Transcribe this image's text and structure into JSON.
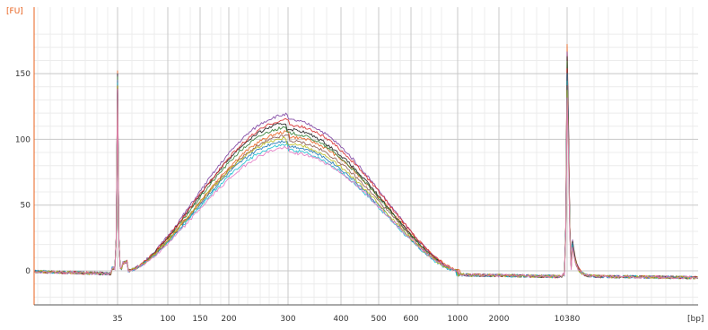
{
  "chart_data": {
    "type": "line",
    "title": "",
    "xlabel": "",
    "ylabel": "",
    "x_unit": "[bp]",
    "y_unit": "[FU]",
    "x_tick_labels": [
      "35",
      "100",
      "150",
      "200",
      "300",
      "400",
      "500",
      "600",
      "1000",
      "2000",
      "10380"
    ],
    "y_tick_labels": [
      "0",
      "50",
      "100",
      "150"
    ],
    "ylim": [
      -25,
      190
    ],
    "grid": true,
    "legend": "none",
    "markers": [
      {
        "label": "35",
        "peak": 150
      },
      {
        "label": "10380",
        "peak": 175
      }
    ],
    "smear": {
      "apex_label": "300",
      "peak_range": [
        88,
        113
      ],
      "start_label": "35",
      "end_label": "1000"
    },
    "series": [
      {
        "color": "#e8601c",
        "peak": 100,
        "shift": 0.05,
        "width": 1.05
      },
      {
        "color": "#7b3fa0",
        "peak": 113,
        "shift": 0.0,
        "width": 1.0
      },
      {
        "color": "#1a1a1a",
        "peak": 106,
        "shift": -0.05,
        "width": 1.0
      },
      {
        "color": "#2f7d32",
        "peak": 103,
        "shift": -0.03,
        "width": 1.0
      },
      {
        "color": "#d62728",
        "peak": 109,
        "shift": 0.02,
        "width": 1.03
      },
      {
        "color": "#1f77b4",
        "peak": 93,
        "shift": -0.02,
        "width": 0.98
      },
      {
        "color": "#17becf",
        "peak": 90,
        "shift": 0.0,
        "width": 0.97
      },
      {
        "color": "#8c564b",
        "peak": 97,
        "shift": 0.03,
        "width": 1.0
      },
      {
        "color": "#bcbd22",
        "peak": 95,
        "shift": -0.04,
        "width": 0.99
      },
      {
        "color": "#e377c2",
        "peak": 88,
        "shift": 0.04,
        "width": 1.02
      }
    ]
  }
}
